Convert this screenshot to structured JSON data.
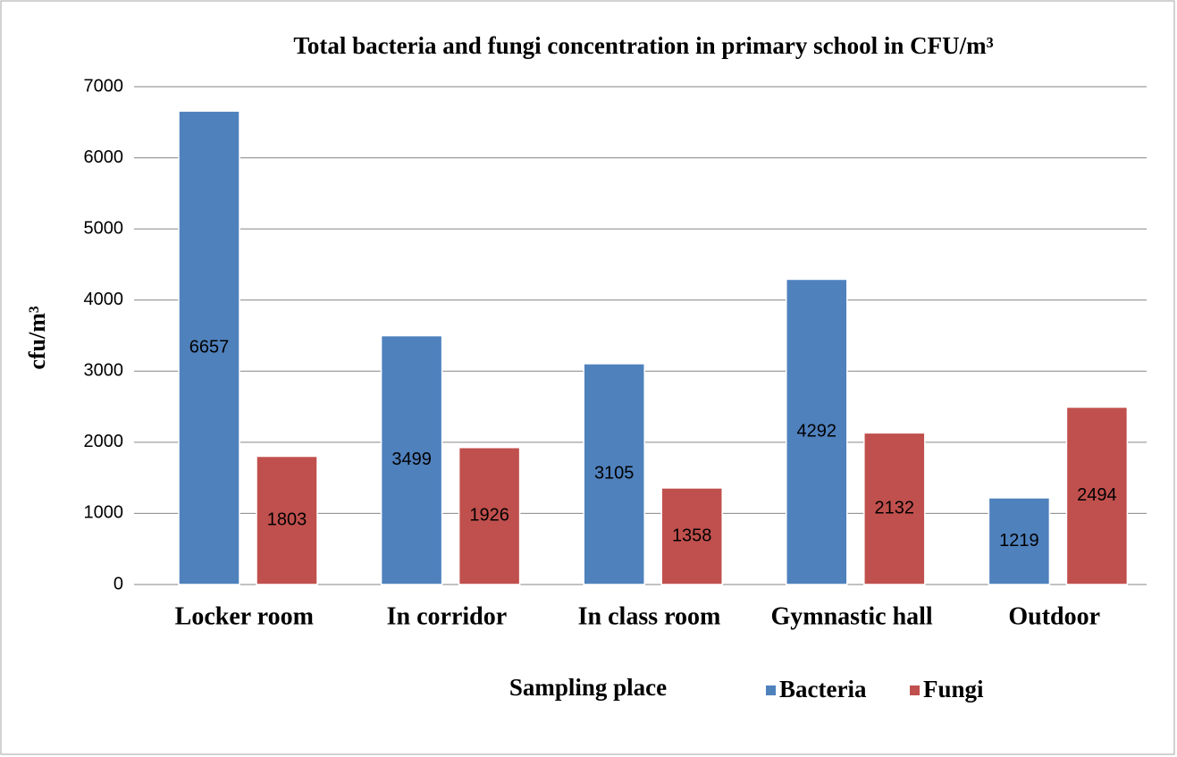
{
  "chart_data": {
    "type": "bar",
    "title": "Total bacteria and fungi concentration in primary school in CFU/m³",
    "x_label": "Sampling place",
    "y_label": "cfu/m³",
    "categories": [
      "Locker room",
      "In corridor",
      "In class room",
      "Gymnastic hall",
      "Outdoor"
    ],
    "series": [
      {
        "name": "Bacteria",
        "color": "#4f81bd",
        "values": [
          6657,
          3499,
          3105,
          4292,
          1219
        ]
      },
      {
        "name": "Fungi",
        "color": "#c0504d",
        "values": [
          1803,
          1926,
          1358,
          2132,
          2494
        ]
      }
    ],
    "ylim": [
      0,
      7000
    ],
    "yticks": [
      0,
      1000,
      2000,
      3000,
      4000,
      5000,
      6000,
      7000
    ],
    "grid": true,
    "legend": "bottom"
  }
}
